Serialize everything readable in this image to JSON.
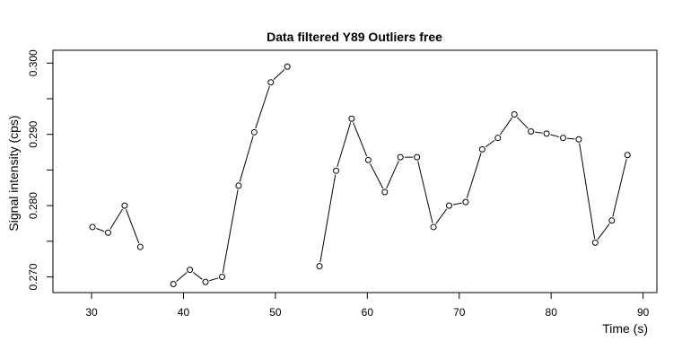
{
  "chart_data": {
    "type": "line",
    "title": "Data filtered Y89 Outliers free",
    "xlabel": "Time (s)",
    "ylabel": "Signal intensity (cps)",
    "xlim": [
      25.8,
      91.5
    ],
    "ylim": [
      0.2678,
      0.3018
    ],
    "xticks": [
      30,
      40,
      50,
      60,
      70,
      80,
      90
    ],
    "xtick_labels": [
      "30",
      "40",
      "50",
      "60",
      "70",
      "80",
      "90"
    ],
    "yticks": [
      0.27,
      0.275,
      0.28,
      0.285,
      0.29,
      0.295,
      0.3
    ],
    "ytick_labels": [
      "0.270",
      "",
      "0.280",
      "",
      "0.290",
      "",
      "0.300"
    ],
    "grid": false,
    "marker": "open-circle",
    "series": [
      {
        "points": [
          [
            30.1,
            0.277
          ],
          [
            31.8,
            0.2762
          ],
          [
            33.6,
            0.28
          ],
          [
            35.3,
            0.2742
          ],
          [
            null,
            null
          ],
          [
            38.9,
            0.269
          ],
          [
            40.7,
            0.271
          ],
          [
            42.4,
            0.2693
          ],
          [
            44.2,
            0.27
          ],
          [
            46.0,
            0.2828
          ],
          [
            47.7,
            0.2903
          ],
          [
            49.5,
            0.2973
          ],
          [
            51.3,
            0.2995
          ],
          [
            null,
            null
          ],
          [
            54.8,
            0.2715
          ],
          [
            56.6,
            0.2849
          ],
          [
            58.3,
            0.2922
          ],
          [
            60.1,
            0.2864
          ],
          [
            61.9,
            0.2819
          ],
          [
            63.6,
            0.2868
          ],
          [
            65.4,
            0.2868
          ],
          [
            67.2,
            0.277
          ],
          [
            68.9,
            0.28
          ],
          [
            70.7,
            0.2805
          ],
          [
            72.5,
            0.2879
          ],
          [
            74.2,
            0.2895
          ],
          [
            76.0,
            0.2928
          ],
          [
            77.8,
            0.2904
          ],
          [
            79.5,
            0.2901
          ],
          [
            81.3,
            0.2895
          ],
          [
            83.0,
            0.2893
          ],
          [
            84.8,
            0.2748
          ],
          [
            86.6,
            0.2779
          ],
          [
            88.3,
            0.2871
          ]
        ]
      }
    ]
  }
}
